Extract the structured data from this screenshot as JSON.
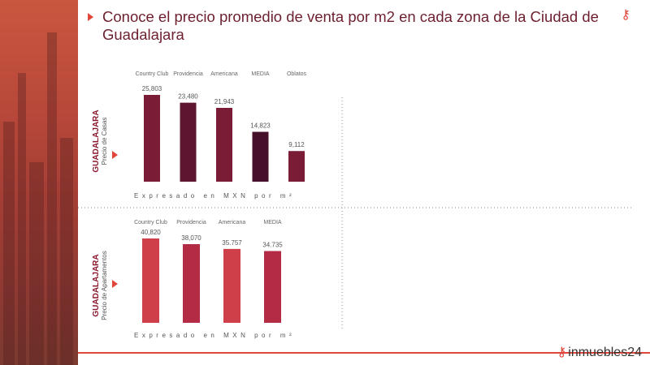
{
  "title": "Conoce el precio promedio de venta por m2  en cada zona de la Ciudad de Guadalajara",
  "brand": "inmuebles24",
  "colors": {
    "accent": "#e0463a",
    "title": "#6d1f2e"
  },
  "chart_data": [
    {
      "type": "bar",
      "side_title": "GUADALAJARA",
      "side_subtitle": "Precio de Casas",
      "categories": [
        "Country Club",
        "Providencia",
        "Americana",
        "MEDIA",
        "Oblatos"
      ],
      "values": [
        25803,
        23480,
        21943,
        14823,
        9112
      ],
      "value_labels": [
        "25,803",
        "23,480",
        "21,943",
        "14,823",
        "9,112"
      ],
      "colors": [
        "#7a1c36",
        "#5e1530",
        "#7a1c36",
        "#46102a",
        "#7a1c36"
      ],
      "xlabel": "Expresado en MXN por m²"
    },
    {
      "type": "bar",
      "side_title": "GUADALAJARA",
      "side_subtitle": "Precio de Apartamentos",
      "categories": [
        "Country Club",
        "Providencia",
        "Americana",
        "MEDIA"
      ],
      "values": [
        40820,
        38070,
        35757,
        34735
      ],
      "value_labels": [
        "40,820",
        "38,070",
        "35.757",
        "34.735"
      ],
      "colors": [
        "#cf3f4a",
        "#b32b44",
        "#cf3f4a",
        "#b32b44"
      ],
      "xlabel": "Expresado en MXN por m²"
    }
  ]
}
